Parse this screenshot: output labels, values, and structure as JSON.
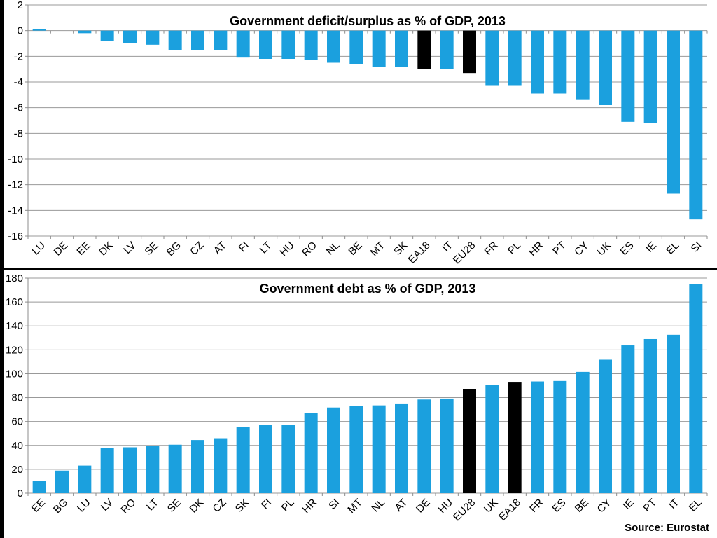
{
  "source_label": "Source: Eurostat",
  "colors": {
    "bar": "#1BA0DE",
    "highlight_bar": "#000000",
    "gridline": "#999999",
    "axis": "#8C8C8C",
    "text": "#000000",
    "background": "#FFFFFF",
    "frame": "#000000"
  },
  "chart_data": [
    {
      "type": "bar",
      "title": "Government deficit/surplus as % of GDP, 2013",
      "categories": [
        "LU",
        "DE",
        "EE",
        "DK",
        "LV",
        "SE",
        "BG",
        "CZ",
        "AT",
        "FI",
        "LT",
        "HU",
        "RO",
        "NL",
        "BE",
        "MT",
        "SK",
        "EA18",
        "IT",
        "EU28",
        "FR",
        "PL",
        "HR",
        "PT",
        "CY",
        "UK",
        "ES",
        "IE",
        "EL",
        "SI"
      ],
      "values": [
        0.1,
        0.0,
        -0.2,
        -0.8,
        -1.0,
        -1.1,
        -1.5,
        -1.5,
        -1.5,
        -2.1,
        -2.2,
        -2.2,
        -2.3,
        -2.5,
        -2.6,
        -2.8,
        -2.8,
        -3.0,
        -3.0,
        -3.3,
        -4.3,
        -4.3,
        -4.9,
        -4.9,
        -5.4,
        -5.8,
        -7.1,
        -7.2,
        -12.7,
        -14.7
      ],
      "highlighted_categories": [
        "EA18",
        "EU28"
      ],
      "xlabel": "",
      "ylabel": "",
      "ylim": [
        -16,
        2
      ],
      "ytick_step": 2,
      "grid": true,
      "legend": false
    },
    {
      "type": "bar",
      "title": "Government debt as % of GDP, 2013",
      "categories": [
        "EE",
        "BG",
        "LU",
        "LV",
        "RO",
        "LT",
        "SE",
        "DK",
        "CZ",
        "SK",
        "FI",
        "PL",
        "HR",
        "SI",
        "MT",
        "NL",
        "AT",
        "DE",
        "HU",
        "EU28",
        "UK",
        "EA18",
        "FR",
        "ES",
        "BE",
        "CY",
        "IE",
        "PT",
        "IT",
        "EL"
      ],
      "values": [
        10.0,
        18.9,
        23.1,
        38.1,
        38.4,
        39.4,
        40.6,
        44.5,
        46.0,
        55.4,
        57.0,
        57.0,
        67.1,
        71.7,
        73.0,
        73.5,
        74.5,
        78.4,
        79.2,
        87.1,
        90.6,
        92.6,
        93.5,
        93.9,
        101.5,
        111.7,
        123.7,
        129.0,
        132.6,
        175.1
      ],
      "highlighted_categories": [
        "EU28",
        "EA18"
      ],
      "xlabel": "",
      "ylabel": "",
      "ylim": [
        0,
        180
      ],
      "ytick_step": 20,
      "grid": true,
      "legend": false
    }
  ]
}
